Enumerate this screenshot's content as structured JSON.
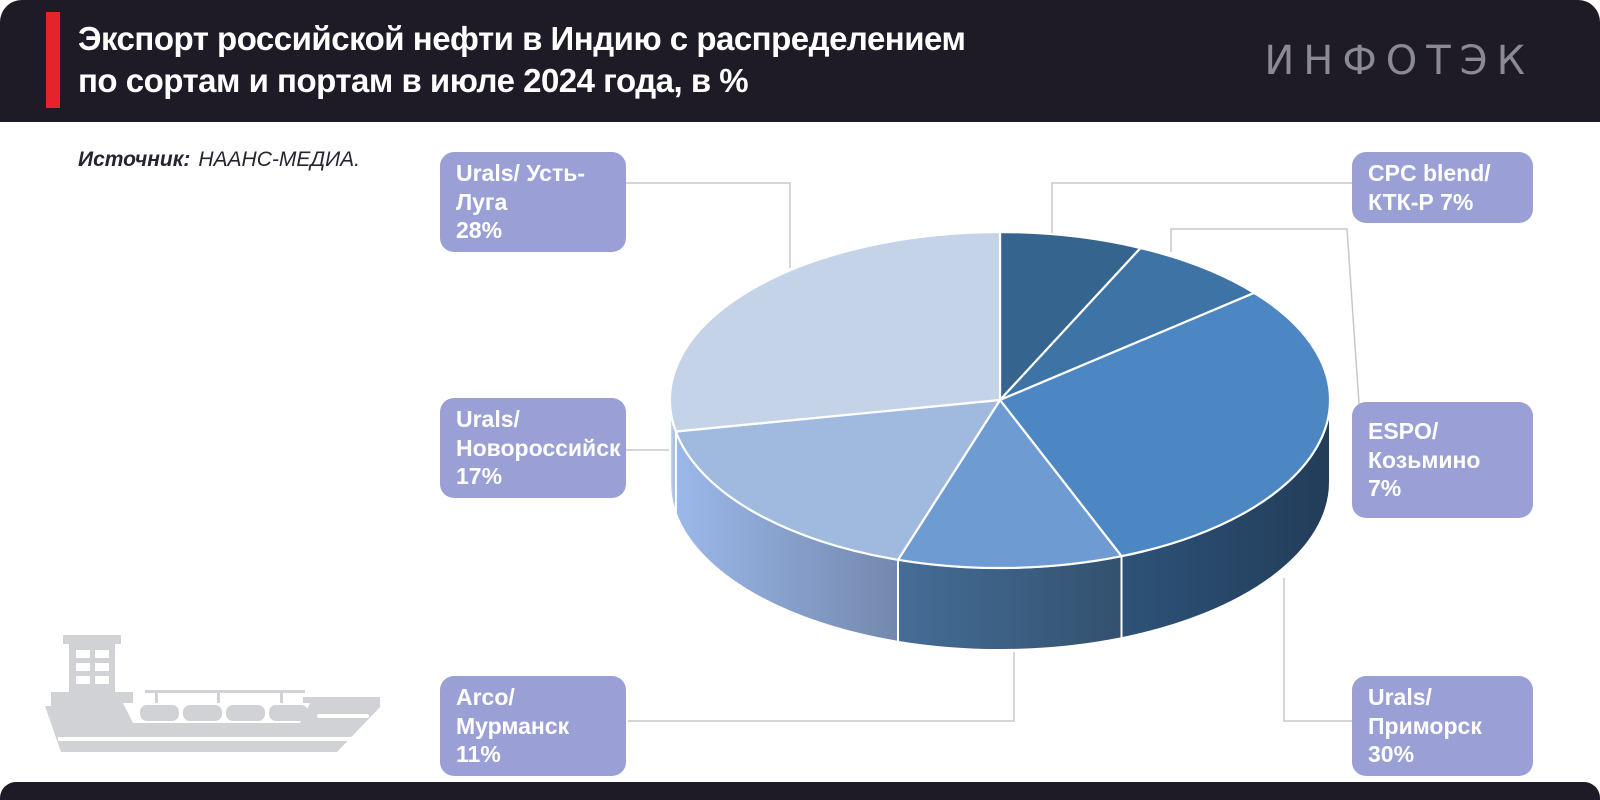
{
  "header": {
    "title_line1": "Экспорт российской нефти в Индию с распределением",
    "title_line2": "по сортам и портам в июле 2024 года, в %",
    "logo_text": "ИНФОТЭК",
    "accent_color": "#e5232b",
    "background_color": "#1e1b26"
  },
  "source": {
    "label": "Источник:",
    "value": "НААНС-МЕДИА."
  },
  "chart_data": {
    "type": "pie",
    "style": "3d",
    "title": "Экспорт российской нефти в Индию с распределением по сортам и портам в июле 2024 года, в %",
    "unit": "%",
    "direction": "clockwise",
    "start_angle_deg": 0,
    "slices": [
      {
        "label": "CPC blend/ КТК-Р",
        "value": 7,
        "color": "#35648f",
        "side_color": "#254a6a"
      },
      {
        "label": "ESPO/ Козьмино",
        "value": 7,
        "color": "#3e73a6",
        "side_color": "#2d567e"
      },
      {
        "label": "Urals/ Приморск",
        "value": 30,
        "color": "#4c87c3",
        "side_color": "#223d59"
      },
      {
        "label": "Arco/ Мурманск",
        "value": 11,
        "color": "#6f9bd3",
        "side_color": "#33516f"
      },
      {
        "label": "Urals/ Новороссийск",
        "value": 17,
        "color": "#a0b9de",
        "side_color": "#7388ad"
      },
      {
        "label": "Urals/ Усть-Луга",
        "value": 28,
        "color": "#c5d3e9",
        "side_color": "#97a8c7"
      }
    ],
    "label_box_color": "#9aa0d6",
    "leader_line_color": "#c8c8cc"
  },
  "callouts": {
    "ust_luga": {
      "line1": "Urals/ Усть-Луга",
      "line2": "28%"
    },
    "cpc": {
      "line1": "CPC blend/",
      "line2": "КТК-Р 7%"
    },
    "novorossiysk": {
      "line1": "Urals/",
      "line2": "Новороссийск",
      "line3": "17%"
    },
    "espo": {
      "line1": "ESPO/ Козьмино",
      "line2": "7%"
    },
    "arco": {
      "line1": "Arco/ Мурманск",
      "line2": "11%"
    },
    "primorsk": {
      "line1": "Urals/ Приморск",
      "line2": "30%"
    }
  }
}
